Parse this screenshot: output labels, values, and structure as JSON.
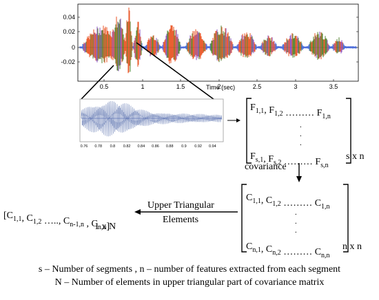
{
  "waveform": {
    "time_label": "Time (sec)",
    "y_ticks": [
      "0.04",
      "0.02",
      "0",
      "-0.02"
    ],
    "x_ticks": [
      "0.5",
      "1",
      "1.5",
      "2",
      "2.5",
      "3",
      "3.5"
    ],
    "colors": {
      "orange": "#e8501f",
      "green": "#4f7f2a",
      "blue": "#4668d8",
      "purple": "#8a4fc0"
    }
  },
  "zoom": {
    "x_ticks": [
      "0.76",
      "0.78",
      "0.8",
      "0.82",
      "0.84",
      "0.86",
      "0.88",
      "0.9",
      "0.92",
      "0.94"
    ]
  },
  "feature_matrix": {
    "row1": [
      {
        "base": "F",
        "sub": "1,1"
      },
      {
        "base": ", ",
        "sub": ""
      },
      {
        "base": "F",
        "sub": "1,2"
      },
      {
        "base": " ……… ",
        "sub": ""
      },
      {
        "base": "F",
        "sub": "1,n"
      }
    ],
    "row2": [
      {
        "base": "F",
        "sub": "s,1"
      },
      {
        "base": ", ",
        "sub": ""
      },
      {
        "base": "F",
        "sub": "s,2"
      },
      {
        "base": " ……… ",
        "sub": ""
      },
      {
        "base": "F",
        "sub": "s,n"
      }
    ],
    "size": "s x n"
  },
  "covariance_label": "covariance",
  "cov_matrix": {
    "row1": [
      {
        "base": "C",
        "sub": "1,1"
      },
      {
        "base": ", ",
        "sub": ""
      },
      {
        "base": "C",
        "sub": "1,2"
      },
      {
        "base": " ……… ",
        "sub": ""
      },
      {
        "base": "C",
        "sub": "1,n"
      }
    ],
    "row2": [
      {
        "base": "C",
        "sub": "n,1"
      },
      {
        "base": ", ",
        "sub": ""
      },
      {
        "base": "C",
        "sub": "n,2"
      },
      {
        "base": " ……… ",
        "sub": ""
      },
      {
        "base": "C",
        "sub": "n,n"
      }
    ],
    "size": "n x n"
  },
  "upper_triangular_label": [
    "Upper Triangular",
    "Elements"
  ],
  "vector": {
    "items": [
      {
        "base": "[C",
        "sub": "1,1"
      },
      {
        "base": ", C",
        "sub": "1,2"
      },
      {
        "base": " ….., C",
        "sub": "n-1,n"
      },
      {
        "base": " , C",
        "sub": "n,n"
      },
      {
        "base": "]",
        "sub": ""
      }
    ],
    "size": "1 x N"
  },
  "legend": {
    "line1": "s – Number of segments   ,  n – number of features extracted from each segment",
    "line2": "N – Number of elements in upper triangular part of covariance matrix"
  }
}
